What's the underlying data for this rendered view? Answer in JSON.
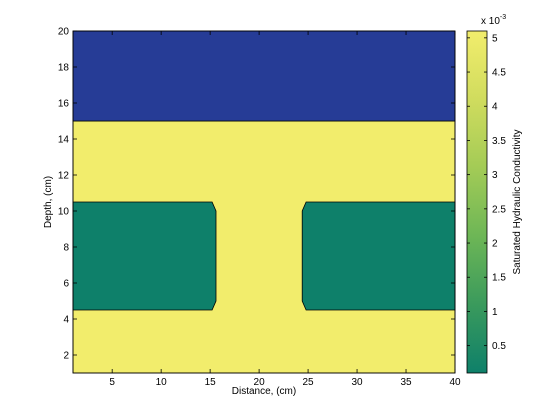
{
  "chart_data": {
    "type": "heatmap",
    "title": "",
    "xlabel": "Distance, (cm)",
    "ylabel": "Depth, (cm)",
    "colorbar_label": "Saturated Hydraulic Conductivity",
    "colorbar_multiplier": "x 10",
    "colorbar_exponent": "-3",
    "xlim": [
      1,
      40
    ],
    "ylim": [
      1,
      20
    ],
    "xticks": [
      5,
      10,
      15,
      20,
      25,
      30,
      35,
      40
    ],
    "yticks": [
      2,
      4,
      6,
      8,
      10,
      12,
      14,
      16,
      18,
      20
    ],
    "clim": [
      0.0001,
      0.0051
    ],
    "colorbar_ticks": [
      {
        "value": 0.0005,
        "label": "0.5"
      },
      {
        "value": 0.001,
        "label": "1"
      },
      {
        "value": 0.0015,
        "label": "1.5"
      },
      {
        "value": 0.002,
        "label": "2"
      },
      {
        "value": 0.0025,
        "label": "2.5"
      },
      {
        "value": 0.003,
        "label": "3"
      },
      {
        "value": 0.0035,
        "label": "3.5"
      },
      {
        "value": 0.004,
        "label": "4"
      },
      {
        "value": 0.0045,
        "label": "4.5"
      },
      {
        "value": 0.005,
        "label": "5"
      }
    ],
    "regions": [
      {
        "name": "bottom-layer",
        "value": 0.0051,
        "color": "#f2ed6c",
        "polygon": [
          [
            1,
            1
          ],
          [
            40,
            1
          ],
          [
            40,
            15
          ],
          [
            1,
            15
          ]
        ]
      },
      {
        "name": "top-layer",
        "value": 0.0001,
        "color": "#263c96",
        "polygon": [
          [
            1,
            15
          ],
          [
            40,
            15
          ],
          [
            40,
            20
          ],
          [
            1,
            20
          ]
        ]
      },
      {
        "name": "left-block",
        "value": 0.0009,
        "color": "#0e806a",
        "polygon": [
          [
            1,
            4.5
          ],
          [
            15.2,
            4.5
          ],
          [
            15.6,
            5
          ],
          [
            15.6,
            10
          ],
          [
            15.2,
            10.5
          ],
          [
            1,
            10.5
          ]
        ]
      },
      {
        "name": "right-block",
        "value": 0.0009,
        "color": "#0e806a",
        "polygon": [
          [
            24.8,
            4.5
          ],
          [
            40,
            4.5
          ],
          [
            40,
            10.5
          ],
          [
            24.8,
            10.5
          ],
          [
            24.4,
            10
          ],
          [
            24.4,
            5
          ]
        ]
      }
    ],
    "colormap": [
      "#0e806a",
      "#3a9a5c",
      "#6db656",
      "#a3cb56",
      "#d0dc5e",
      "#f2ed6c"
    ]
  }
}
